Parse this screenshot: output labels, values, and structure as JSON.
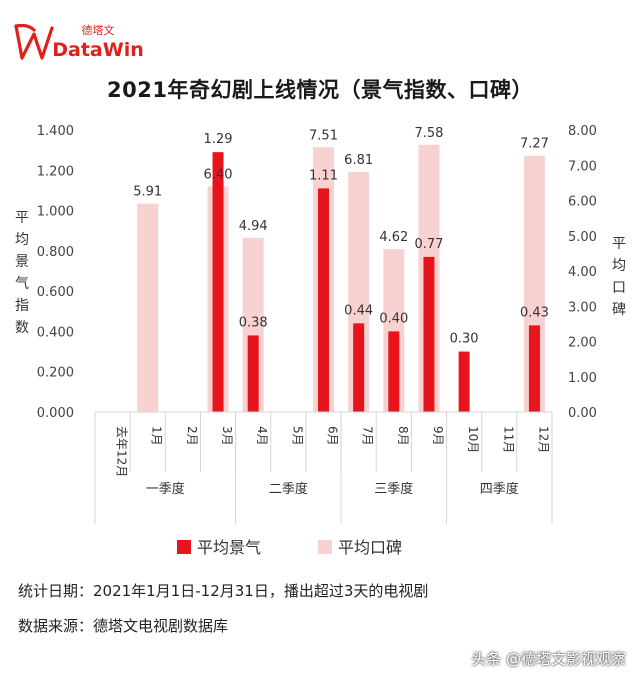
{
  "brand": {
    "chinese": "德塔文",
    "latin": "DataWin",
    "accent": "#e0211b"
  },
  "chart_data": {
    "type": "bar",
    "title": "2021年奇幻剧上线情况（景气指数、口碑）",
    "categories": [
      "去年12月",
      "1月",
      "2月",
      "3月",
      "4月",
      "5月",
      "6月",
      "7月",
      "8月",
      "9月",
      "10月",
      "11月",
      "12月"
    ],
    "quarters": [
      {
        "label": "一季度",
        "from": 0,
        "to": 3
      },
      {
        "label": "二季度",
        "from": 4,
        "to": 6
      },
      {
        "label": "三季度",
        "from": 7,
        "to": 9
      },
      {
        "label": "四季度",
        "from": 10,
        "to": 12
      }
    ],
    "series": [
      {
        "name": "平均景气",
        "axis": "left",
        "color": "#e8141b",
        "values": [
          null,
          null,
          null,
          1.29,
          0.38,
          null,
          1.11,
          0.44,
          0.4,
          0.77,
          0.3,
          null,
          0.43
        ],
        "labels": [
          null,
          null,
          null,
          "1.29",
          "0.38",
          null,
          "1.11",
          "0.44",
          "0.40",
          "0.77",
          "0.30",
          null,
          "0.43"
        ]
      },
      {
        "name": "平均口碑",
        "axis": "right",
        "color": "#f8d2d0",
        "values": [
          null,
          5.91,
          null,
          6.4,
          4.94,
          null,
          7.51,
          6.81,
          4.62,
          7.58,
          null,
          null,
          7.27
        ],
        "labels": [
          null,
          "5.91",
          null,
          "6.40",
          "4.94",
          null,
          "7.51",
          "6.81",
          "4.62",
          "7.58",
          null,
          null,
          "7.27"
        ]
      }
    ],
    "left_axis": {
      "label": "平均景气指数",
      "ylim": [
        0,
        1.4
      ],
      "ticks": [
        "0.000",
        "0.200",
        "0.400",
        "0.600",
        "0.800",
        "1.000",
        "1.200",
        "1.400"
      ]
    },
    "right_axis": {
      "label": "平均口碑",
      "ylim": [
        0,
        8
      ],
      "ticks": [
        "0.00",
        "1.00",
        "2.00",
        "3.00",
        "4.00",
        "5.00",
        "6.00",
        "7.00",
        "8.00"
      ]
    },
    "legend": {
      "position": "bottom"
    },
    "grid": false
  },
  "notes": {
    "date": "统计日期：2021年1月1日-12月31日，播出超过3天的电视剧",
    "source": "数据来源：德塔文电视剧数据库"
  },
  "watermark": "头条 @德塔文影视观察"
}
